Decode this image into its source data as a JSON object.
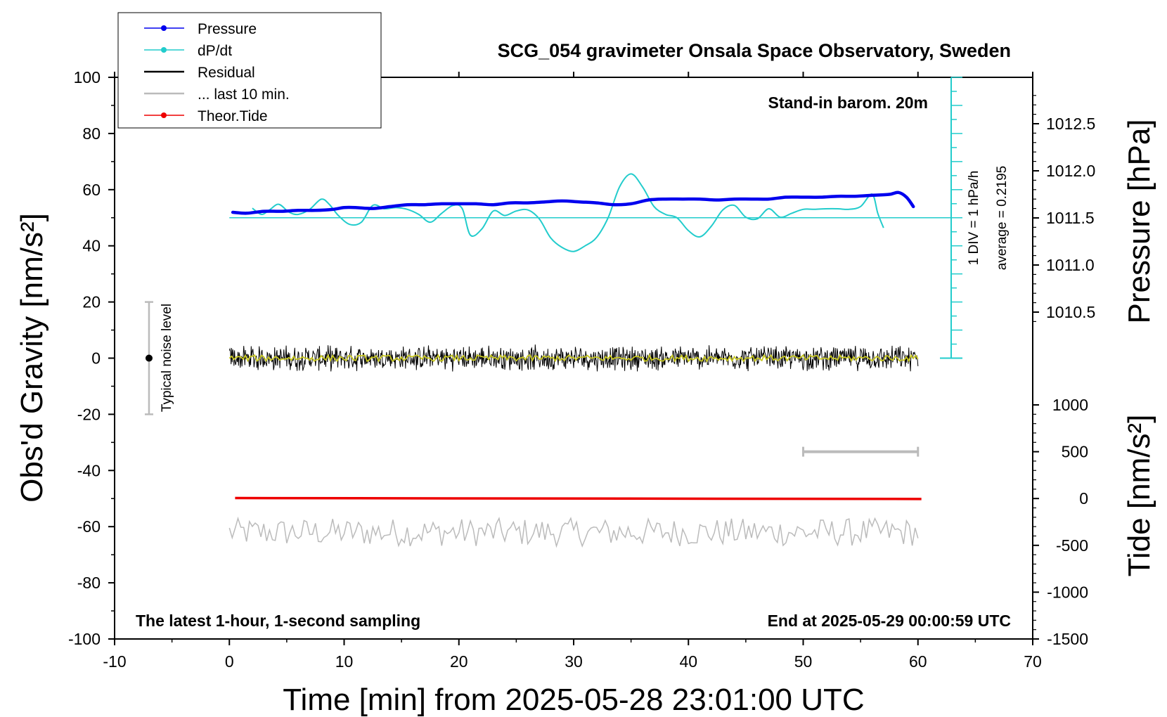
{
  "chart_data": {
    "type": "line",
    "title": "SCG_054 gravimeter Onsala Space Observatory, Sweden",
    "xlabel": "Time [min] from 2025-05-28 23:01:00 UTC",
    "ylabel_left": "Obs'd Gravity [nm/s²]",
    "ylabel_right_top": "Pressure [hPa]",
    "ylabel_right_bottom": "Tide [nm/s²]",
    "xlim": [
      -10,
      70
    ],
    "ylim_left": [
      -100,
      100
    ],
    "xticks": [
      "-10",
      "0",
      "10",
      "20",
      "30",
      "40",
      "50",
      "60",
      "70"
    ],
    "yticks_left": [
      "-100",
      "-80",
      "-60",
      "-40",
      "-20",
      "0",
      "20",
      "40",
      "60",
      "80",
      "100"
    ],
    "yticks_pressure": [
      "1010.5",
      "1011.0",
      "1011.5",
      "1012.0",
      "1012.5"
    ],
    "yticks_tide": [
      "-1500",
      "-1000",
      "-500",
      "0",
      "500",
      "1000"
    ],
    "annotations": {
      "top_right": "Stand-in barom. 20m",
      "bottom_left": "The latest 1-hour, 1-second sampling",
      "bottom_right": "End at 2025-05-29 00:00:59 UTC",
      "scale_div": "1 DIV = 1 hPa/h",
      "scale_avg": "average = 0.2195",
      "noise": "Typical noise level"
    },
    "legend": {
      "placement": "top-left",
      "entries": [
        {
          "name": "Pressure",
          "color": "#0000ee",
          "marker": true
        },
        {
          "name": "dP/dt",
          "color": "#22cccc",
          "marker": true
        },
        {
          "name": "Residual",
          "color": "#000000",
          "marker": false
        },
        {
          "name": "... last 10 min.",
          "color": "#bbbbbb",
          "marker": false
        },
        {
          "name": "Theor.Tide",
          "color": "#ee0000",
          "marker": true
        }
      ]
    },
    "series": [
      {
        "name": "Pressure",
        "color": "#0000ee",
        "axis": "pressure_hPa",
        "x": [
          0.3,
          1.5,
          3,
          4.5,
          6,
          7.5,
          9,
          10,
          11,
          12.5,
          14,
          15.5,
          17,
          18.5,
          20,
          21.5,
          23,
          24.5,
          26,
          27.5,
          29,
          30.5,
          32,
          33.5,
          35,
          36.5,
          38,
          39.5,
          41,
          42.5,
          44,
          45.5,
          47,
          48.5,
          50,
          51.5,
          53,
          54.5,
          56,
          57.5,
          58.3,
          59,
          59.6
        ],
        "y": [
          1011.56,
          1011.55,
          1011.57,
          1011.57,
          1011.58,
          1011.58,
          1011.59,
          1011.61,
          1011.61,
          1011.6,
          1011.62,
          1011.64,
          1011.64,
          1011.65,
          1011.65,
          1011.65,
          1011.64,
          1011.66,
          1011.66,
          1011.67,
          1011.68,
          1011.67,
          1011.66,
          1011.64,
          1011.65,
          1011.69,
          1011.7,
          1011.7,
          1011.7,
          1011.69,
          1011.7,
          1011.7,
          1011.7,
          1011.72,
          1011.72,
          1011.72,
          1011.73,
          1011.73,
          1011.74,
          1011.75,
          1011.77,
          1011.72,
          1011.62
        ]
      },
      {
        "name": "dP/dt",
        "color": "#22cccc",
        "axis": "left_div",
        "x": [
          2,
          2.8,
          3.5,
          4.3,
          5.2,
          6,
          7,
          8,
          8.7,
          9.5,
          10.5,
          11.5,
          12.5,
          13.5,
          14.5,
          15.5,
          16.5,
          17.5,
          18.5,
          19.5,
          20.3,
          21,
          22,
          23,
          24,
          25,
          26,
          27,
          28,
          29,
          30,
          31,
          32,
          33,
          34,
          35,
          36,
          37,
          38,
          39,
          40,
          41,
          42,
          43,
          44,
          45,
          46,
          47,
          48,
          49,
          50,
          51,
          52,
          53,
          54,
          55,
          56,
          56.5,
          57
        ],
        "y": [
          1.7,
          0.6,
          1.4,
          2.4,
          1.0,
          0.6,
          1.5,
          3.3,
          2.4,
          0.4,
          -1.2,
          -0.8,
          2.2,
          1.6,
          1.8,
          1.5,
          0.6,
          -0.8,
          0.8,
          2.2,
          1.6,
          -3.1,
          -2.0,
          1.2,
          0.4,
          1.2,
          1.4,
          -0.2,
          -3.6,
          -5.3,
          -6.0,
          -5.0,
          -3.5,
          0.0,
          5.5,
          7.8,
          5.5,
          2.0,
          0.6,
          0.0,
          -2.3,
          -3.4,
          -1.5,
          1.4,
          2.2,
          0.1,
          -0.2,
          1.6,
          0.1,
          0.8,
          1.5,
          1.5,
          1.6,
          1.6,
          1.5,
          2.0,
          4.2,
          0.8,
          -1.8
        ]
      },
      {
        "name": "Residual",
        "color": "#000000",
        "axis": "left",
        "x_range": [
          0,
          60
        ],
        "center": 0,
        "amplitude": 4.5
      },
      {
        "name": "... last 10 min.",
        "color": "#bbbbbb",
        "axis": "left",
        "x_range": [
          0,
          60
        ],
        "center": -62,
        "amplitude": 5
      },
      {
        "name": "Theor.Tide",
        "color": "#ee0000",
        "axis": "tide_nm_s2",
        "x": [
          0.5,
          60.3
        ],
        "y": [
          5,
          -5
        ]
      }
    ],
    "dpdt_zero_level": 50,
    "dpdt_div_units": 5,
    "noise_bar": {
      "x": -7,
      "ylim": [
        -20,
        20
      ]
    },
    "scale_bar_10min": {
      "x": [
        50,
        60
      ],
      "tide_value": 500
    }
  }
}
